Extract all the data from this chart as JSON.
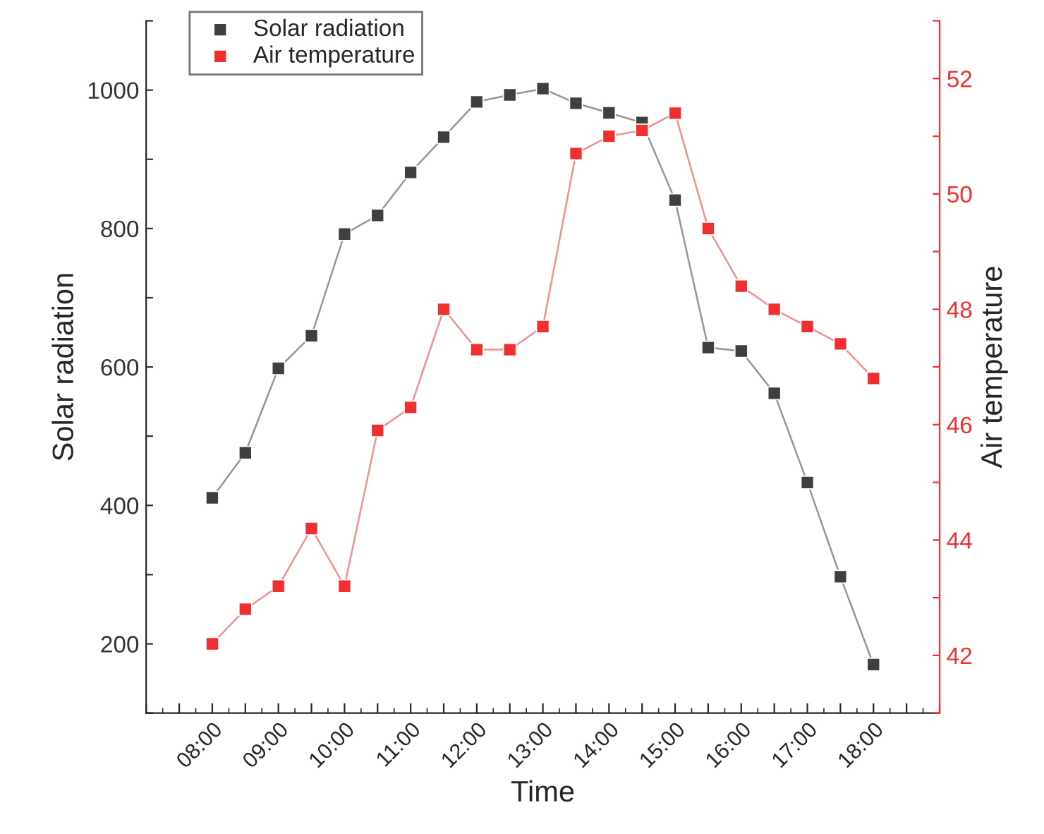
{
  "chart_data": {
    "type": "line",
    "xlabel": "Time",
    "ylabel": "Solar radiation",
    "y2label": "Air temperature",
    "x": [
      8,
      8.5,
      9,
      9.5,
      10,
      10.5,
      11,
      11.5,
      12,
      12.5,
      13,
      13.5,
      14,
      14.5,
      15,
      15.5,
      16,
      16.5,
      17,
      17.5,
      18
    ],
    "series": [
      {
        "name": "Solar radiation",
        "color": "#3f3f3f",
        "values": [
          411,
          476,
          598,
          645,
          792,
          819,
          881,
          932,
          983,
          993,
          1002,
          981,
          967,
          953,
          841,
          628,
          623,
          562,
          433,
          297,
          170
        ]
      },
      {
        "name": "Air temperature",
        "color": "#f03030",
        "axis": "y2",
        "values": [
          42.2,
          42.8,
          43.2,
          44.2,
          43.2,
          45.9,
          46.3,
          48.0,
          47.3,
          47.3,
          47.7,
          50.7,
          51.0,
          51.1,
          51.4,
          49.4,
          48.4,
          48.0,
          47.7,
          47.4,
          46.8
        ]
      }
    ],
    "xlim": [
      7,
      19
    ],
    "xticks": [
      {
        "value": 7,
        "label": null
      },
      {
        "value": 7.5,
        "label": null
      },
      {
        "value": 8,
        "label": "08:00"
      },
      {
        "value": 8.5,
        "label": null
      },
      {
        "value": 9,
        "label": "09:00"
      },
      {
        "value": 9.5,
        "label": null
      },
      {
        "value": 10,
        "label": "10:00"
      },
      {
        "value": 10.5,
        "label": null
      },
      {
        "value": 11,
        "label": "11:00"
      },
      {
        "value": 11.5,
        "label": null
      },
      {
        "value": 12,
        "label": "12:00"
      },
      {
        "value": 12.5,
        "label": null
      },
      {
        "value": 13,
        "label": "13:00"
      },
      {
        "value": 13.5,
        "label": null
      },
      {
        "value": 14,
        "label": "14:00"
      },
      {
        "value": 14.5,
        "label": null
      },
      {
        "value": 15,
        "label": "15:00"
      },
      {
        "value": 15.5,
        "label": null
      },
      {
        "value": 16,
        "label": "16:00"
      },
      {
        "value": 16.5,
        "label": null
      },
      {
        "value": 17,
        "label": "17:00"
      },
      {
        "value": 17.5,
        "label": null
      },
      {
        "value": 18,
        "label": "18:00"
      },
      {
        "value": 18.5,
        "label": null
      },
      {
        "value": 19,
        "label": null
      }
    ],
    "ylim": [
      100,
      1100
    ],
    "yticks": [
      {
        "value": 100,
        "label": null
      },
      200,
      {
        "value": 300,
        "label": null
      },
      400,
      {
        "value": 500,
        "label": null
      },
      600,
      {
        "value": 700,
        "label": null
      },
      800,
      {
        "value": 900,
        "label": null
      },
      1000,
      {
        "value": 1100,
        "label": null
      }
    ],
    "y2lim": [
      41,
      53
    ],
    "y2ticks": [
      {
        "value": 41,
        "label": null
      },
      42,
      {
        "value": 43,
        "label": null
      },
      44,
      {
        "value": 45,
        "label": null
      },
      46,
      {
        "value": 47,
        "label": null
      },
      48,
      {
        "value": 49,
        "label": null
      },
      50,
      {
        "value": 51,
        "label": null
      },
      52,
      {
        "value": 53,
        "label": null
      }
    ],
    "marker": "square",
    "line_style": "solid",
    "grid": false,
    "legend": "top left"
  }
}
